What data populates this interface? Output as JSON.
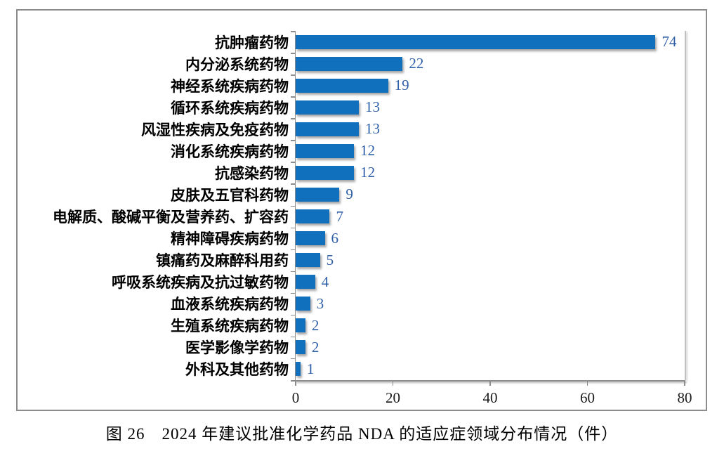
{
  "figure": {
    "caption": "图 26　2024 年建议批准化学药品 NDA 的适应症领域分布情况（件）"
  },
  "chart_data": {
    "type": "bar",
    "orientation": "horizontal",
    "title": "",
    "xlabel": "",
    "ylabel": "",
    "xlim": [
      0,
      80
    ],
    "x_ticks": [
      0,
      20,
      40,
      60,
      80
    ],
    "grid": false,
    "legend": false,
    "data_labels": true,
    "bar_color": "#1170BD",
    "value_label_color": "#2E5FA8",
    "axis_color": "#8C8C8C",
    "categories": [
      "抗肿瘤药物",
      "内分泌系统药物",
      "神经系统疾病药物",
      "循环系统疾病药物",
      "风湿性疾病及免疫药物",
      "消化系统疾病药物",
      "抗感染药物",
      "皮肤及五官科药物",
      "电解质、酸碱平衡及营养药、扩容药",
      "精神障碍疾病药物",
      "镇痛药及麻醉科用药",
      "呼吸系统疾病及抗过敏药物",
      "血液系统疾病药物",
      "生殖系统疾病药物",
      "医学影像学药物",
      "外科及其他药物"
    ],
    "values": [
      74,
      22,
      19,
      13,
      13,
      12,
      12,
      9,
      7,
      6,
      5,
      4,
      3,
      2,
      2,
      1
    ]
  }
}
